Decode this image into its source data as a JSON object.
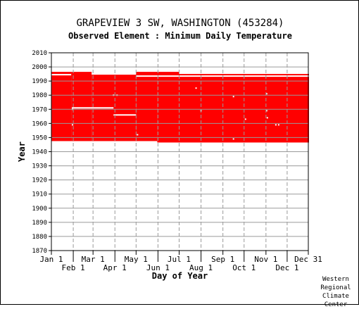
{
  "chart_data": {
    "type": "bar",
    "title": "GRAPEVIEW 3 SW, WASHINGTON   (453284)",
    "subtitle": "Observed Element : Minimum Daily Temperature",
    "xlabel": "Day of Year",
    "ylabel": "Year",
    "ylim": [
      1870,
      2010
    ],
    "xlim": [
      1,
      365
    ],
    "y_ticks": [
      2010,
      2000,
      1990,
      1980,
      1970,
      1960,
      1950,
      1940,
      1930,
      1920,
      1910,
      1900,
      1890,
      1880,
      1870
    ],
    "x_ticks_upper": [
      {
        "label": "Jan 1",
        "day": 1
      },
      {
        "label": "Mar 1",
        "day": 60
      },
      {
        "label": "May 1",
        "day": 121
      },
      {
        "label": "Jul 1",
        "day": 182
      },
      {
        "label": "Sep 1",
        "day": 244
      },
      {
        "label": "Nov 1",
        "day": 305
      },
      {
        "label": "Dec 31",
        "day": 365
      }
    ],
    "x_ticks_lower": [
      {
        "label": "Feb 1",
        "day": 32
      },
      {
        "label": "Apr 1",
        "day": 91
      },
      {
        "label": "Jun 1",
        "day": 152
      },
      {
        "label": "Aug 1",
        "day": 213
      },
      {
        "label": "Oct 1",
        "day": 274
      },
      {
        "label": "Dec 1",
        "day": 335
      }
    ],
    "grid": true,
    "color": "#ff0000",
    "records": [
      {
        "start_day": 1,
        "end_day": 28,
        "start_year": 1948,
        "end_year": 1994
      },
      {
        "start_day": 1,
        "end_day": 28,
        "start_year": 1995,
        "end_year": 1996
      },
      {
        "start_day": 29,
        "end_day": 57,
        "start_year": 1948,
        "end_year": 1996
      },
      {
        "start_day": 58,
        "end_day": 120,
        "start_year": 1948,
        "end_year": 1994
      },
      {
        "start_day": 121,
        "end_day": 150,
        "start_year": 1948,
        "end_year": 1993
      },
      {
        "start_day": 121,
        "end_day": 181,
        "start_year": 1994,
        "end_year": 1996
      },
      {
        "start_day": 151,
        "end_day": 181,
        "start_year": 1947,
        "end_year": 1993
      },
      {
        "start_day": 182,
        "end_day": 365,
        "start_year": 1947,
        "end_year": 1993
      },
      {
        "start_day": 182,
        "end_day": 365,
        "start_year": 1994,
        "end_year": 1995
      }
    ],
    "gaps": [
      {
        "start_day": 1,
        "end_day": 28,
        "year": 1994.5
      },
      {
        "start_day": 30,
        "end_day": 88,
        "year": 1971
      },
      {
        "start_day": 89,
        "end_day": 120,
        "year": 1966
      },
      {
        "start_day": 121,
        "end_day": 365,
        "year": 1993.5
      },
      {
        "start_day": 182,
        "end_day": 365,
        "year": 1995.5
      }
    ],
    "missing_days": [
      {
        "day": 30,
        "year": 1959
      },
      {
        "day": 30,
        "year": 1970
      },
      {
        "day": 88,
        "year": 1980
      },
      {
        "day": 93,
        "year": 1980
      },
      {
        "day": 122,
        "year": 1952
      },
      {
        "day": 205,
        "year": 1985
      },
      {
        "day": 212,
        "year": 1969
      },
      {
        "day": 258,
        "year": 1979
      },
      {
        "day": 258,
        "year": 1949
      },
      {
        "day": 275,
        "year": 1963
      },
      {
        "day": 305,
        "year": 1981
      },
      {
        "day": 305,
        "year": 1969
      },
      {
        "day": 306,
        "year": 1964
      },
      {
        "day": 318,
        "year": 1959
      },
      {
        "day": 322,
        "year": 1959
      }
    ]
  },
  "credit": [
    "Western",
    "Regional",
    "Climate",
    "Center"
  ]
}
